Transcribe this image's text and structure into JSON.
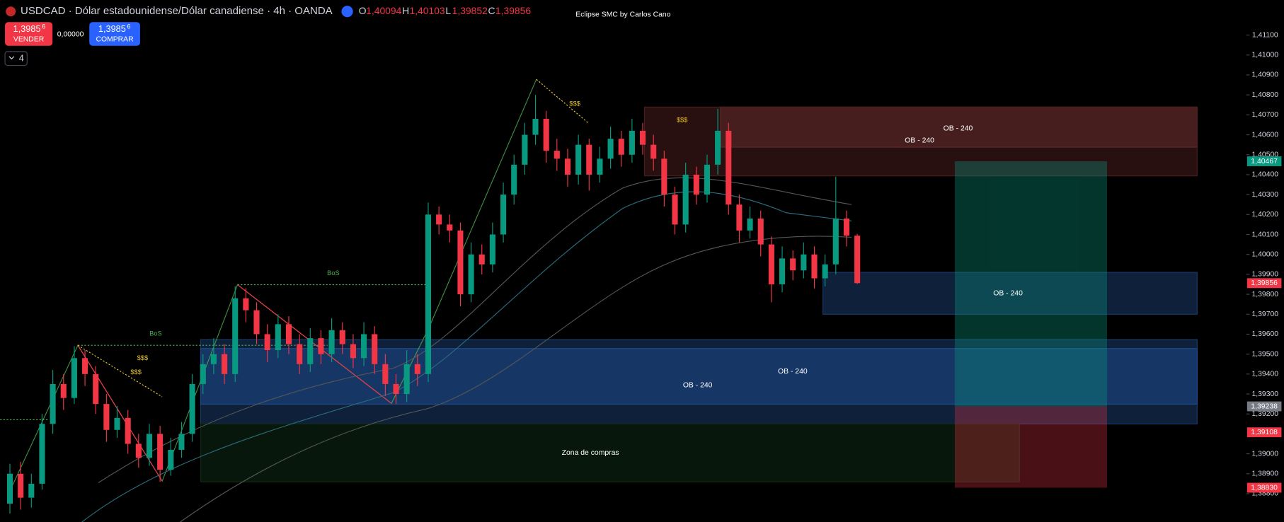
{
  "header": {
    "symbol": "USDCAD · Dólar estadounidense/Dólar canadiense · 4h · OANDA",
    "o_label": "O",
    "o": "1,40094",
    "h_label": "H",
    "h": "1,40103",
    "l_label": "L",
    "l": "1,39852",
    "c_label": "C",
    "c": "1,39856",
    "indicator": "Eclipse SMC by Carlos Cano",
    "sell_price": "1,3985",
    "sell_pip": "6",
    "sell": "VENDER",
    "spread": "0,00000",
    "buy_price": "1,3985",
    "buy_pip": "6",
    "buy": "COMPRAR",
    "collapse": "4"
  },
  "chart_data": {
    "type": "candlestick",
    "up_color": "#089981",
    "down_color": "#f23645",
    "open": [
      1.3875,
      1.389,
      1.3878,
      1.3885,
      1.3915,
      1.3935,
      1.3928,
      1.3948,
      1.394,
      1.3925,
      1.3912,
      1.3918,
      1.3905,
      1.3898,
      1.391,
      1.3892,
      1.3902,
      1.391,
      1.3935,
      1.3945,
      1.395,
      1.394,
      1.3978,
      1.3972,
      1.396,
      1.3952,
      1.3965,
      1.3955,
      1.3945,
      1.3958,
      1.395,
      1.3962,
      1.3955,
      1.3948,
      1.396,
      1.3945,
      1.3935,
      1.393,
      1.3945,
      1.394,
      1.402,
      1.4015,
      1.4012,
      1.398,
      1.4,
      1.3995,
      1.401,
      1.403,
      1.4045,
      1.406,
      1.4068,
      1.4052,
      1.4048,
      1.404,
      1.4055,
      1.404,
      1.4048,
      1.4058,
      1.405,
      1.4062,
      1.4055,
      1.4048,
      1.403,
      1.4015,
      1.404,
      1.403,
      1.4045,
      1.4062,
      1.4025,
      1.4012,
      1.4018,
      1.4005,
      1.3985,
      1.3998,
      1.3992,
      1.4,
      1.3988,
      1.3995,
      1.4018,
      1.40094
    ],
    "high": [
      1.3895,
      1.3896,
      1.389,
      1.392,
      1.3942,
      1.394,
      1.3954,
      1.3952,
      1.3944,
      1.393,
      1.3924,
      1.3922,
      1.391,
      1.3915,
      1.3914,
      1.3908,
      1.3916,
      1.394,
      1.395,
      1.3958,
      1.3955,
      1.3984,
      1.3983,
      1.3976,
      1.3965,
      1.397,
      1.3969,
      1.396,
      1.3963,
      1.3962,
      1.3968,
      1.3966,
      1.396,
      1.3966,
      1.3964,
      1.395,
      1.394,
      1.3952,
      1.395,
      1.4026,
      1.4024,
      1.402,
      1.4016,
      1.4006,
      1.4005,
      1.4016,
      1.4036,
      1.405,
      1.4066,
      1.408,
      1.4072,
      1.4058,
      1.4053,
      1.406,
      1.4058,
      1.4054,
      1.4064,
      1.4062,
      1.4068,
      1.4066,
      1.406,
      1.4052,
      1.4034,
      1.4046,
      1.4044,
      1.405,
      1.4073,
      1.4066,
      1.403,
      1.4024,
      1.4022,
      1.4009,
      1.4004,
      1.4002,
      1.4006,
      1.4004,
      1.4,
      1.4039,
      1.4022,
      1.40103
    ],
    "low": [
      1.387,
      1.3872,
      1.3873,
      1.3882,
      1.391,
      1.3922,
      1.3925,
      1.3934,
      1.392,
      1.3906,
      1.3908,
      1.39,
      1.3893,
      1.3894,
      1.3886,
      1.3889,
      1.3898,
      1.3906,
      1.393,
      1.394,
      1.3935,
      1.3936,
      1.3966,
      1.3955,
      1.3946,
      1.3948,
      1.395,
      1.394,
      1.3941,
      1.3945,
      1.3946,
      1.395,
      1.3943,
      1.3944,
      1.394,
      1.3929,
      1.3925,
      1.3926,
      1.3934,
      1.3936,
      1.401,
      1.4006,
      1.3974,
      1.3976,
      1.399,
      1.3991,
      1.4006,
      1.4025,
      1.404,
      1.4055,
      1.4046,
      1.4042,
      1.4034,
      1.4035,
      1.4032,
      1.4036,
      1.4043,
      1.4044,
      1.4046,
      1.405,
      1.4042,
      1.4024,
      1.401,
      1.4011,
      1.4025,
      1.4026,
      1.404,
      1.402,
      1.4006,
      1.4008,
      1.3999,
      1.3976,
      1.3981,
      1.3987,
      1.3988,
      1.3983,
      1.3984,
      1.399,
      1.4004,
      1.39852
    ],
    "close": [
      1.389,
      1.3878,
      1.3885,
      1.3915,
      1.3935,
      1.3928,
      1.3948,
      1.394,
      1.3925,
      1.3912,
      1.3918,
      1.3905,
      1.3898,
      1.391,
      1.3892,
      1.3902,
      1.391,
      1.3935,
      1.3945,
      1.395,
      1.394,
      1.3978,
      1.3972,
      1.396,
      1.3952,
      1.3965,
      1.3955,
      1.3945,
      1.3958,
      1.395,
      1.3962,
      1.3955,
      1.3948,
      1.396,
      1.3945,
      1.3935,
      1.393,
      1.3945,
      1.394,
      1.402,
      1.4015,
      1.4012,
      1.398,
      1.4,
      1.3995,
      1.401,
      1.403,
      1.4045,
      1.406,
      1.4068,
      1.4052,
      1.4048,
      1.404,
      1.4055,
      1.404,
      1.4048,
      1.4058,
      1.405,
      1.4062,
      1.4055,
      1.4048,
      1.403,
      1.4015,
      1.404,
      1.403,
      1.4045,
      1.4062,
      1.4025,
      1.4012,
      1.4018,
      1.4005,
      1.3985,
      1.3998,
      1.3992,
      1.4,
      1.3988,
      1.3995,
      1.4018,
      1.40094,
      1.39856
    ],
    "ylim": [
      1.38658,
      1.41276
    ],
    "yticks": [
      {
        "value": 1.411,
        "label": "1,41100"
      },
      {
        "value": 1.41,
        "label": "1,41000"
      },
      {
        "value": 1.409,
        "label": "1,40900"
      },
      {
        "value": 1.408,
        "label": "1,40800"
      },
      {
        "value": 1.407,
        "label": "1,40700"
      },
      {
        "value": 1.406,
        "label": "1,40600"
      },
      {
        "value": 1.405,
        "label": "1,40500"
      },
      {
        "value": 1.404,
        "label": "1,40400"
      },
      {
        "value": 1.403,
        "label": "1,40300"
      },
      {
        "value": 1.402,
        "label": "1,40200"
      },
      {
        "value": 1.401,
        "label": "1,40100"
      },
      {
        "value": 1.4,
        "label": "1,40000"
      },
      {
        "value": 1.399,
        "label": "1,39900"
      },
      {
        "value": 1.398,
        "label": "1,39800"
      },
      {
        "value": 1.397,
        "label": "1,39700"
      },
      {
        "value": 1.396,
        "label": "1,39600"
      },
      {
        "value": 1.395,
        "label": "1,39500"
      },
      {
        "value": 1.394,
        "label": "1,39400"
      },
      {
        "value": 1.393,
        "label": "1,39300"
      },
      {
        "value": 1.392,
        "label": "1,39200"
      },
      {
        "value": 1.39,
        "label": "1,39000"
      },
      {
        "value": 1.389,
        "label": "1,38900"
      },
      {
        "value": 1.388,
        "label": "1,38800"
      }
    ],
    "price_tags": [
      {
        "value": 1.40467,
        "label": "1,40467",
        "color": "#089981"
      },
      {
        "value": 1.39856,
        "label": "1,39856",
        "color": "#f23645"
      },
      {
        "value": 1.39238,
        "label": "1,39238",
        "color": "#787b86"
      },
      {
        "value": 1.39108,
        "label": "1,39108",
        "color": "#f23645"
      },
      {
        "value": 1.3883,
        "label": "1,38830",
        "color": "#f23645"
      }
    ],
    "zones": [
      {
        "label": "OB - 240",
        "top": 1.40739,
        "bottom": 1.40538,
        "color": "#7a3a3a"
      },
      {
        "label": "OB - 240",
        "top": 1.40739,
        "bottom": 1.40394,
        "color": "#4a1e1e"
      },
      {
        "label": "OB - 240",
        "top": 1.3991,
        "bottom": 1.397,
        "color": "#1a3a6a"
      },
      {
        "label": "OB - 240",
        "top": 1.39573,
        "bottom": 1.3915,
        "color": "#1a3a6a"
      },
      {
        "label": "OB - 240",
        "top": 1.39528,
        "bottom": 1.39249,
        "color": "#1e4a8a"
      },
      {
        "label": "Zona de compras",
        "top": 1.3915,
        "bottom": 1.38859,
        "color": "#0f2a14"
      }
    ],
    "position": {
      "target": 1.40467,
      "entry": 1.39238,
      "stop": 1.3883
    },
    "annotations": [
      {
        "text": "BoS",
        "color": "#4caf50"
      },
      {
        "text": "BoS",
        "color": "#4caf50"
      },
      {
        "text": "$$$",
        "color": "#e6c229"
      },
      {
        "text": "$$$",
        "color": "#e6c229"
      },
      {
        "text": "$$$",
        "color": "#e6c229"
      },
      {
        "text": "$$$",
        "color": "#e6c229"
      }
    ]
  }
}
